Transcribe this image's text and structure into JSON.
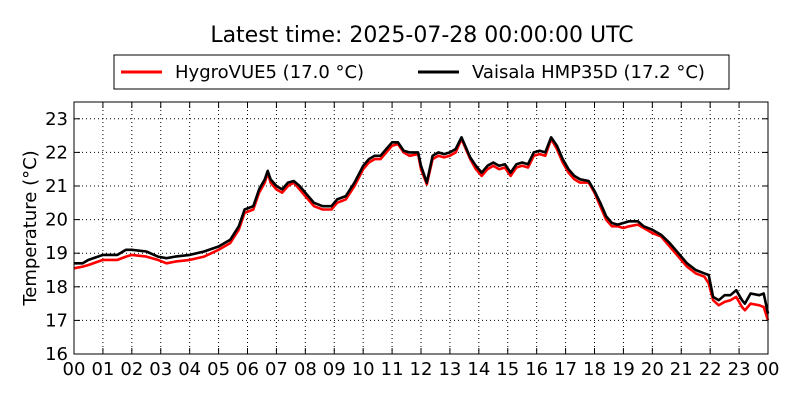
{
  "chart_data": {
    "type": "line",
    "title": "Latest time: 2025-07-28 00:00:00 UTC",
    "xlabel": "",
    "ylabel": "Temperature (°C)",
    "xlim": [
      0,
      24
    ],
    "ylim": [
      16,
      23.5
    ],
    "x_ticks": [
      "00",
      "01",
      "02",
      "03",
      "04",
      "05",
      "06",
      "07",
      "08",
      "09",
      "10",
      "11",
      "12",
      "13",
      "14",
      "15",
      "16",
      "17",
      "18",
      "19",
      "20",
      "21",
      "22",
      "23",
      "00"
    ],
    "y_ticks": [
      16,
      17,
      18,
      19,
      20,
      21,
      22,
      23
    ],
    "grid": true,
    "legend_position": "top",
    "series": [
      {
        "name": "HygroVUE5 (17.0 °C)",
        "color": "#ff0000",
        "points": [
          [
            0,
            18.55
          ],
          [
            0.3,
            18.6
          ],
          [
            0.5,
            18.65
          ],
          [
            1,
            18.8
          ],
          [
            1.5,
            18.8
          ],
          [
            1.8,
            18.9
          ],
          [
            2,
            18.95
          ],
          [
            2.5,
            18.9
          ],
          [
            2.9,
            18.8
          ],
          [
            3.2,
            18.7
          ],
          [
            3.5,
            18.75
          ],
          [
            4,
            18.8
          ],
          [
            4.5,
            18.9
          ],
          [
            5,
            19.1
          ],
          [
            5.4,
            19.3
          ],
          [
            5.7,
            19.7
          ],
          [
            5.9,
            20.2
          ],
          [
            6.2,
            20.3
          ],
          [
            6.4,
            20.8
          ],
          [
            6.6,
            21.1
          ],
          [
            6.7,
            21.4
          ],
          [
            6.8,
            21.1
          ],
          [
            7.0,
            20.9
          ],
          [
            7.2,
            20.8
          ],
          [
            7.4,
            21.0
          ],
          [
            7.6,
            21.1
          ],
          [
            7.8,
            20.9
          ],
          [
            8.0,
            20.7
          ],
          [
            8.3,
            20.4
          ],
          [
            8.6,
            20.3
          ],
          [
            8.9,
            20.3
          ],
          [
            9.1,
            20.5
          ],
          [
            9.4,
            20.6
          ],
          [
            9.7,
            21.0
          ],
          [
            10,
            21.5
          ],
          [
            10.2,
            21.7
          ],
          [
            10.4,
            21.8
          ],
          [
            10.6,
            21.8
          ],
          [
            10.8,
            22.0
          ],
          [
            11,
            22.2
          ],
          [
            11.2,
            22.25
          ],
          [
            11.4,
            22.0
          ],
          [
            11.6,
            21.9
          ],
          [
            11.9,
            21.95
          ],
          [
            12.0,
            21.5
          ],
          [
            12.2,
            21.05
          ],
          [
            12.4,
            21.8
          ],
          [
            12.6,
            21.9
          ],
          [
            12.8,
            21.85
          ],
          [
            13.0,
            21.9
          ],
          [
            13.2,
            22.0
          ],
          [
            13.4,
            22.4
          ],
          [
            13.5,
            22.2
          ],
          [
            13.7,
            21.8
          ],
          [
            13.9,
            21.5
          ],
          [
            14.1,
            21.3
          ],
          [
            14.3,
            21.5
          ],
          [
            14.5,
            21.6
          ],
          [
            14.7,
            21.5
          ],
          [
            14.9,
            21.55
          ],
          [
            15.1,
            21.3
          ],
          [
            15.3,
            21.55
          ],
          [
            15.5,
            21.6
          ],
          [
            15.7,
            21.55
          ],
          [
            15.9,
            21.9
          ],
          [
            16.1,
            21.95
          ],
          [
            16.3,
            21.9
          ],
          [
            16.5,
            22.4
          ],
          [
            16.7,
            22.1
          ],
          [
            16.9,
            21.7
          ],
          [
            17.1,
            21.4
          ],
          [
            17.3,
            21.2
          ],
          [
            17.5,
            21.1
          ],
          [
            17.8,
            21.1
          ],
          [
            18.0,
            20.8
          ],
          [
            18.2,
            20.4
          ],
          [
            18.4,
            20.0
          ],
          [
            18.6,
            19.8
          ],
          [
            18.8,
            19.8
          ],
          [
            19.0,
            19.75
          ],
          [
            19.2,
            19.8
          ],
          [
            19.5,
            19.85
          ],
          [
            19.7,
            19.75
          ],
          [
            20.0,
            19.6
          ],
          [
            20.3,
            19.5
          ],
          [
            20.6,
            19.2
          ],
          [
            20.9,
            18.9
          ],
          [
            21.2,
            18.6
          ],
          [
            21.5,
            18.4
          ],
          [
            21.8,
            18.3
          ],
          [
            21.95,
            18.1
          ],
          [
            22.1,
            17.6
          ],
          [
            22.3,
            17.45
          ],
          [
            22.5,
            17.55
          ],
          [
            22.7,
            17.6
          ],
          [
            22.9,
            17.7
          ],
          [
            23.1,
            17.4
          ],
          [
            23.2,
            17.3
          ],
          [
            23.4,
            17.5
          ],
          [
            23.7,
            17.45
          ],
          [
            23.85,
            17.4
          ],
          [
            24,
            17.0
          ]
        ]
      },
      {
        "name": "Vaisala HMP35D (17.2 °C)",
        "color": "#000000",
        "points": [
          [
            0,
            18.7
          ],
          [
            0.3,
            18.7
          ],
          [
            0.5,
            18.8
          ],
          [
            1,
            18.95
          ],
          [
            1.5,
            18.95
          ],
          [
            1.8,
            19.1
          ],
          [
            2,
            19.1
          ],
          [
            2.5,
            19.05
          ],
          [
            2.9,
            18.9
          ],
          [
            3.2,
            18.85
          ],
          [
            3.5,
            18.9
          ],
          [
            4,
            18.95
          ],
          [
            4.5,
            19.05
          ],
          [
            5,
            19.2
          ],
          [
            5.4,
            19.4
          ],
          [
            5.7,
            19.8
          ],
          [
            5.9,
            20.3
          ],
          [
            6.2,
            20.4
          ],
          [
            6.4,
            20.9
          ],
          [
            6.6,
            21.2
          ],
          [
            6.7,
            21.45
          ],
          [
            6.8,
            21.2
          ],
          [
            7.0,
            21.0
          ],
          [
            7.2,
            20.9
          ],
          [
            7.4,
            21.1
          ],
          [
            7.6,
            21.15
          ],
          [
            7.8,
            21.0
          ],
          [
            8.0,
            20.8
          ],
          [
            8.3,
            20.5
          ],
          [
            8.6,
            20.4
          ],
          [
            8.9,
            20.4
          ],
          [
            9.1,
            20.6
          ],
          [
            9.4,
            20.7
          ],
          [
            9.7,
            21.1
          ],
          [
            10,
            21.6
          ],
          [
            10.2,
            21.8
          ],
          [
            10.4,
            21.9
          ],
          [
            10.6,
            21.9
          ],
          [
            10.8,
            22.1
          ],
          [
            11,
            22.3
          ],
          [
            11.2,
            22.3
          ],
          [
            11.4,
            22.05
          ],
          [
            11.6,
            22.0
          ],
          [
            11.9,
            22.0
          ],
          [
            12.0,
            21.6
          ],
          [
            12.2,
            21.1
          ],
          [
            12.4,
            21.9
          ],
          [
            12.6,
            22.0
          ],
          [
            12.8,
            21.95
          ],
          [
            13.0,
            22.0
          ],
          [
            13.2,
            22.1
          ],
          [
            13.4,
            22.45
          ],
          [
            13.5,
            22.25
          ],
          [
            13.7,
            21.85
          ],
          [
            13.9,
            21.6
          ],
          [
            14.1,
            21.4
          ],
          [
            14.3,
            21.6
          ],
          [
            14.5,
            21.7
          ],
          [
            14.7,
            21.6
          ],
          [
            14.9,
            21.65
          ],
          [
            15.1,
            21.4
          ],
          [
            15.3,
            21.65
          ],
          [
            15.5,
            21.7
          ],
          [
            15.7,
            21.65
          ],
          [
            15.9,
            22.0
          ],
          [
            16.1,
            22.05
          ],
          [
            16.3,
            22.0
          ],
          [
            16.5,
            22.45
          ],
          [
            16.7,
            22.2
          ],
          [
            16.9,
            21.8
          ],
          [
            17.1,
            21.5
          ],
          [
            17.3,
            21.3
          ],
          [
            17.5,
            21.2
          ],
          [
            17.8,
            21.15
          ],
          [
            18.0,
            20.85
          ],
          [
            18.2,
            20.5
          ],
          [
            18.4,
            20.1
          ],
          [
            18.6,
            19.9
          ],
          [
            18.8,
            19.85
          ],
          [
            19.0,
            19.9
          ],
          [
            19.2,
            19.95
          ],
          [
            19.5,
            19.95
          ],
          [
            19.7,
            19.8
          ],
          [
            20.0,
            19.7
          ],
          [
            20.3,
            19.55
          ],
          [
            20.6,
            19.3
          ],
          [
            20.9,
            19.0
          ],
          [
            21.2,
            18.7
          ],
          [
            21.5,
            18.5
          ],
          [
            21.8,
            18.4
          ],
          [
            21.95,
            18.35
          ],
          [
            22.1,
            17.7
          ],
          [
            22.3,
            17.6
          ],
          [
            22.5,
            17.75
          ],
          [
            22.7,
            17.75
          ],
          [
            22.9,
            17.9
          ],
          [
            23.1,
            17.6
          ],
          [
            23.2,
            17.5
          ],
          [
            23.4,
            17.8
          ],
          [
            23.7,
            17.75
          ],
          [
            23.85,
            17.8
          ],
          [
            24,
            17.2
          ]
        ]
      }
    ]
  }
}
